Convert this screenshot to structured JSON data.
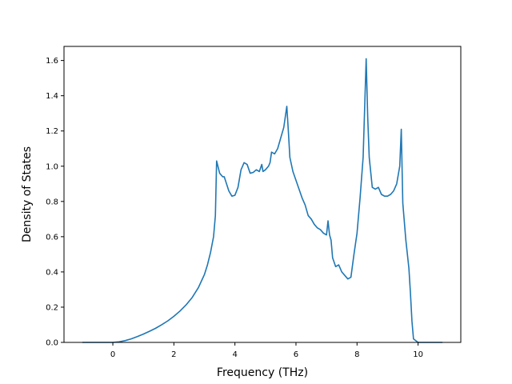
{
  "chart_data": {
    "type": "line",
    "title": "",
    "xlabel": "Frequency (THz)",
    "ylabel": "Density of States",
    "xlim": [
      -1.6,
      11.4
    ],
    "ylim": [
      0.0,
      1.68
    ],
    "xticks": [
      0,
      2,
      4,
      6,
      8,
      10
    ],
    "xtick_labels": [
      "0",
      "2",
      "4",
      "6",
      "8",
      "10"
    ],
    "yticks": [
      0.0,
      0.2,
      0.4,
      0.6,
      0.8,
      1.0,
      1.2,
      1.4,
      1.6
    ],
    "ytick_labels": [
      "0.0",
      "0.2",
      "0.4",
      "0.6",
      "0.8",
      "1.0",
      "1.2",
      "1.4",
      "1.6"
    ],
    "grid": false,
    "legend": "none",
    "series": [
      {
        "color": "#1f77b4",
        "x": [
          -1.0,
          0.0,
          0.2,
          0.4,
          0.6,
          0.8,
          1.0,
          1.2,
          1.4,
          1.6,
          1.8,
          2.0,
          2.2,
          2.4,
          2.6,
          2.8,
          3.0,
          3.1,
          3.2,
          3.3,
          3.36,
          3.4,
          3.5,
          3.6,
          3.65,
          3.8,
          3.9,
          4.0,
          4.1,
          4.2,
          4.3,
          4.4,
          4.5,
          4.6,
          4.7,
          4.8,
          4.88,
          4.92,
          5.0,
          5.1,
          5.15,
          5.2,
          5.3,
          5.4,
          5.5,
          5.6,
          5.7,
          5.75,
          5.8,
          5.9,
          6.0,
          6.1,
          6.2,
          6.3,
          6.4,
          6.5,
          6.6,
          6.7,
          6.8,
          6.9,
          7.0,
          7.05,
          7.1,
          7.15,
          7.2,
          7.3,
          7.4,
          7.5,
          7.6,
          7.7,
          7.8,
          7.9,
          8.0,
          8.1,
          8.2,
          8.3,
          8.35,
          8.4,
          8.5,
          8.6,
          8.7,
          8.8,
          8.9,
          9.0,
          9.1,
          9.2,
          9.3,
          9.4,
          9.45,
          9.5,
          9.6,
          9.7,
          9.75,
          9.8,
          9.85,
          10.0,
          10.8
        ],
        "y": [
          0.0,
          0.0,
          0.003,
          0.01,
          0.02,
          0.033,
          0.047,
          0.063,
          0.08,
          0.1,
          0.122,
          0.148,
          0.178,
          0.213,
          0.255,
          0.31,
          0.385,
          0.44,
          0.51,
          0.6,
          0.72,
          1.03,
          0.96,
          0.94,
          0.94,
          0.86,
          0.83,
          0.835,
          0.88,
          0.98,
          1.02,
          1.01,
          0.96,
          0.965,
          0.98,
          0.97,
          1.01,
          0.97,
          0.98,
          1.0,
          1.02,
          1.08,
          1.07,
          1.1,
          1.16,
          1.22,
          1.34,
          1.2,
          1.05,
          0.97,
          0.92,
          0.87,
          0.82,
          0.78,
          0.72,
          0.7,
          0.67,
          0.65,
          0.64,
          0.62,
          0.61,
          0.69,
          0.61,
          0.58,
          0.48,
          0.43,
          0.44,
          0.4,
          0.38,
          0.36,
          0.37,
          0.5,
          0.62,
          0.82,
          1.05,
          1.61,
          1.28,
          1.05,
          0.88,
          0.87,
          0.88,
          0.84,
          0.83,
          0.83,
          0.84,
          0.86,
          0.9,
          1.0,
          1.21,
          0.79,
          0.58,
          0.42,
          0.28,
          0.12,
          0.02,
          0.0,
          0.0
        ]
      }
    ]
  }
}
